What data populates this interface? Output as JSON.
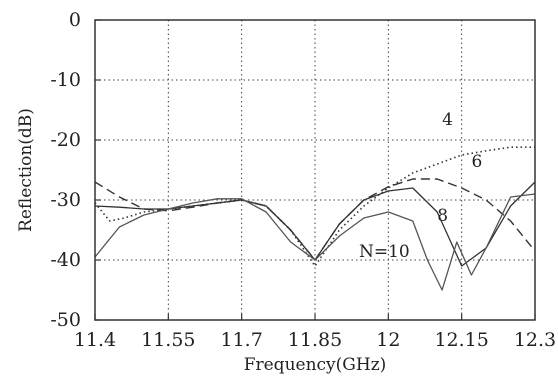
{
  "chart_data": {
    "type": "line",
    "title": "",
    "xlabel": "Frequency(GHz)",
    "ylabel": "Reflection(dB)",
    "xlim": [
      11.4,
      12.3
    ],
    "ylim": [
      -50,
      0
    ],
    "x_ticks": [
      "11.4",
      "11.55",
      "11.7",
      "11.85",
      "12",
      "12.15",
      "12.3"
    ],
    "y_ticks": [
      "0",
      "-10",
      "-20",
      "-30",
      "-40",
      "-50"
    ],
    "grid": true,
    "grid_style": "dotted",
    "legend": "none (series labeled directly on curves)",
    "series": [
      {
        "name": "4",
        "line_style": "dotted",
        "x": [
          11.4,
          11.43,
          11.46,
          11.5,
          11.55,
          11.6,
          11.65,
          11.7,
          11.75,
          11.8,
          11.85,
          11.9,
          11.95,
          12.0,
          12.05,
          12.1,
          12.15,
          12.2,
          12.25,
          12.3
        ],
        "y": [
          -30.5,
          -33.5,
          -33,
          -32,
          -31.5,
          -31,
          -30.5,
          -30,
          -31,
          -35,
          -41,
          -35,
          -31,
          -28,
          -25.5,
          -24,
          -22.5,
          -21.8,
          -21.2,
          -21.2
        ]
      },
      {
        "name": "6",
        "line_style": "dashed",
        "x": [
          11.4,
          11.45,
          11.5,
          11.55,
          11.6,
          11.65,
          11.7,
          11.75,
          11.8,
          11.85,
          11.9,
          11.95,
          12.0,
          12.05,
          12.1,
          12.15,
          12.2,
          12.25,
          12.3
        ],
        "y": [
          -27,
          -29.5,
          -31.5,
          -31.8,
          -31.2,
          -30.5,
          -30,
          -31,
          -35,
          -40,
          -34,
          -30,
          -27.8,
          -26.5,
          -26.5,
          -28,
          -30,
          -33.5,
          -38.5
        ]
      },
      {
        "name": "8",
        "line_style": "solid",
        "x": [
          11.4,
          11.45,
          11.5,
          11.55,
          11.6,
          11.65,
          11.7,
          11.75,
          11.8,
          11.85,
          11.9,
          11.95,
          12.0,
          12.05,
          12.1,
          12.15,
          12.2,
          12.25,
          12.3
        ],
        "y": [
          -31,
          -31.2,
          -31.5,
          -31.5,
          -31,
          -30.5,
          -30,
          -31,
          -35,
          -40,
          -34,
          -30,
          -28.5,
          -28,
          -32,
          -41,
          -38,
          -31,
          -27
        ]
      },
      {
        "name": "N=10",
        "line_style": "solid",
        "x": [
          11.4,
          11.45,
          11.5,
          11.55,
          11.6,
          11.65,
          11.7,
          11.75,
          11.8,
          11.85,
          11.9,
          11.95,
          12.0,
          12.05,
          12.08,
          12.11,
          12.14,
          12.17,
          12.2,
          12.25,
          12.3
        ],
        "y": [
          -39.5,
          -34.5,
          -32.5,
          -31.5,
          -30.5,
          -29.8,
          -29.8,
          -32,
          -37,
          -40,
          -36,
          -33,
          -32,
          -33.5,
          -40,
          -45,
          -37,
          -42.5,
          -38,
          -29.5,
          -29
        ]
      }
    ]
  }
}
